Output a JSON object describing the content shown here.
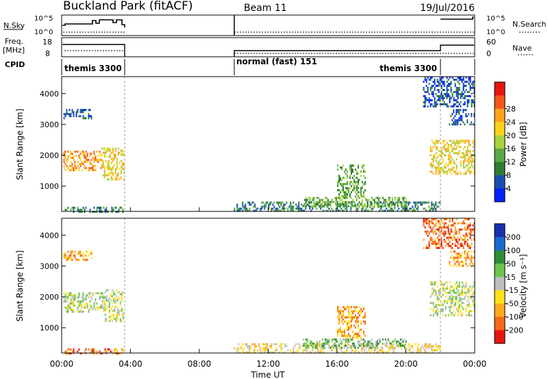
{
  "header": {
    "title": "Buckland Park (fitACF)",
    "beam": "Beam 11",
    "date": "19/Jul/2016"
  },
  "top_panels": {
    "nsky_label": "N.Sky",
    "nsky_ticks": [
      "10^5",
      "10^0"
    ],
    "nsearch_label": "N.Search",
    "nsearch_ticks": [
      "10^5",
      "10^0"
    ],
    "freq_label": "Freq.",
    "freq_unit": "[MHz]",
    "freq_ticks": [
      "18",
      "8"
    ],
    "nave_label": "Nave",
    "nave_ticks": [
      "60",
      "0"
    ],
    "cpid_label": "CPID",
    "cpid_segments": [
      {
        "label": "themis 3300",
        "start": 0.0,
        "end": 3.6
      },
      {
        "label": "normal (fast) 151",
        "start": 10.0,
        "end": 21.9
      },
      {
        "label": "themis 3300",
        "start": 21.9,
        "end": 24.0
      }
    ]
  },
  "x_axis": {
    "label": "Time UT",
    "range": [
      0,
      24
    ],
    "ticks": [
      "00:00",
      "04:00",
      "08:00",
      "12:00",
      "16:00",
      "20:00",
      "00:00"
    ]
  },
  "power_colorbar": {
    "label": "Power [dB]",
    "ticks": [
      "4",
      "8",
      "12",
      "16",
      "20",
      "24",
      "28"
    ],
    "colors": [
      "#0022ff",
      "#1a4fb0",
      "#2e7d32",
      "#5aa845",
      "#a6d23b",
      "#ffd21a",
      "#ffa31a",
      "#f5561a",
      "#e8150f"
    ]
  },
  "velocity_colorbar": {
    "label": "Velocity [m s⁻¹]",
    "ticks": [
      "200",
      "100",
      "50",
      "15",
      "-15",
      "-50",
      "-100",
      "-200"
    ],
    "colors": [
      "#1a2fb0",
      "#1a6ad0",
      "#2e8b3a",
      "#6cc44a",
      "#bdbdbd",
      "#ffe21a",
      "#ffab1a",
      "#f56a1a",
      "#e8150f"
    ]
  },
  "chart_data": [
    {
      "type": "heatmap",
      "title": "",
      "xlabel": "Time UT",
      "ylabel": "Slant Range [km]",
      "xlim": [
        0,
        24
      ],
      "ylim": [
        180,
        4550
      ],
      "yticks": [
        "1000",
        "2000",
        "3000",
        "4000"
      ],
      "colorbar": "Power [dB]",
      "regions": [
        {
          "x": [
            0.1,
            2.3
          ],
          "y": [
            1500,
            2150
          ],
          "level": 6
        },
        {
          "x": [
            2.3,
            3.6
          ],
          "y": [
            1250,
            2250
          ],
          "level": 5
        },
        {
          "x": [
            0.1,
            3.6
          ],
          "y": [
            180,
            330
          ],
          "level": 2
        },
        {
          "x": [
            0.1,
            1.7
          ],
          "y": [
            3200,
            3500
          ],
          "level": 1
        },
        {
          "x": [
            10.0,
            22.0
          ],
          "y": [
            200,
            500
          ],
          "level": 2
        },
        {
          "x": [
            14.0,
            20.0
          ],
          "y": [
            350,
            650
          ],
          "level": 3
        },
        {
          "x": [
            16.0,
            17.6
          ],
          "y": [
            700,
            1700
          ],
          "level": 3
        },
        {
          "x": [
            21.4,
            24.0
          ],
          "y": [
            1400,
            2500
          ],
          "level": 5
        },
        {
          "x": [
            22.5,
            24.0
          ],
          "y": [
            3000,
            3500
          ],
          "level": 1
        },
        {
          "x": [
            21.0,
            24.0
          ],
          "y": [
            3600,
            4550
          ],
          "level": 1
        }
      ]
    },
    {
      "type": "heatmap",
      "title": "",
      "xlabel": "Time UT",
      "ylabel": "Slant Range [km]",
      "xlim": [
        0,
        24
      ],
      "ylim": [
        180,
        4550
      ],
      "yticks": [
        "1000",
        "2000",
        "3000",
        "4000"
      ],
      "colorbar": "Velocity [m s⁻¹]",
      "regions": [
        {
          "x": [
            0.1,
            2.5
          ],
          "y": [
            1500,
            2150
          ],
          "level": 4
        },
        {
          "x": [
            2.5,
            3.6
          ],
          "y": [
            1250,
            2250
          ],
          "level": 4
        },
        {
          "x": [
            0.1,
            3.6
          ],
          "y": [
            180,
            330
          ],
          "level": 7
        },
        {
          "x": [
            0.1,
            1.7
          ],
          "y": [
            3200,
            3500
          ],
          "level": 6
        },
        {
          "x": [
            10.0,
            22.0
          ],
          "y": [
            200,
            500
          ],
          "level": 5
        },
        {
          "x": [
            14.0,
            20.0
          ],
          "y": [
            350,
            650
          ],
          "level": 3
        },
        {
          "x": [
            16.0,
            17.6
          ],
          "y": [
            700,
            1700
          ],
          "level": 6
        },
        {
          "x": [
            21.4,
            24.0
          ],
          "y": [
            1400,
            2500
          ],
          "level": 4
        },
        {
          "x": [
            22.5,
            24.0
          ],
          "y": [
            3000,
            3500
          ],
          "level": 6
        },
        {
          "x": [
            21.0,
            24.0
          ],
          "y": [
            3600,
            4550
          ],
          "level": 7
        }
      ]
    }
  ]
}
